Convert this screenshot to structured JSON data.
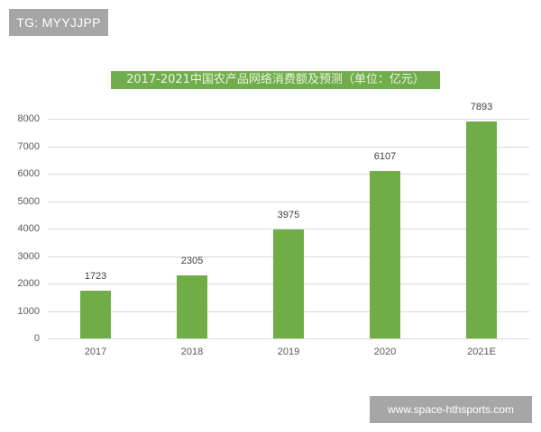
{
  "watermark_top": "TG: MYYJJPP",
  "watermark_bottom": "www.space-hthsports.com",
  "colors": {
    "bar": "#70ad47",
    "title_bg": "#71ad4f",
    "badge_bg": "#a6a6a6"
  },
  "chart_data": {
    "type": "bar",
    "title": "2017-2021中国农产品网络消费额及预测（单位：亿元）",
    "xlabel": "",
    "ylabel": "",
    "categories": [
      "2017",
      "2018",
      "2019",
      "2020",
      "2021E"
    ],
    "values": [
      1723,
      2305,
      3975,
      6107,
      7893
    ],
    "data_labels": [
      "1723",
      "2305",
      "3975",
      "6107",
      "7893"
    ],
    "yticks": [
      "0",
      "1000",
      "2000",
      "3000",
      "4000",
      "5000",
      "6000",
      "7000",
      "8000"
    ],
    "ylim": [
      0,
      8000
    ],
    "grid": true,
    "legend": null
  }
}
